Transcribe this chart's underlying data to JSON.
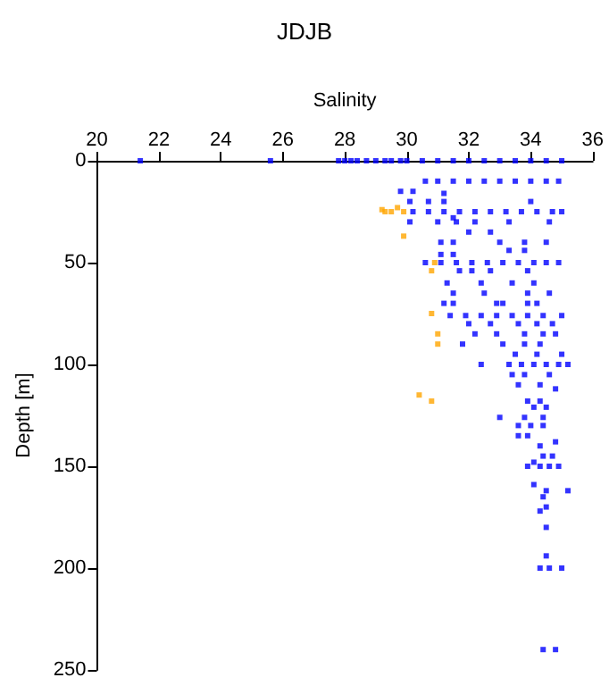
{
  "chart_data": {
    "type": "scatter",
    "title": "JDJB",
    "xlabel": "Salinity",
    "ylabel": "Depth [m]",
    "xlim": [
      20,
      36
    ],
    "xticks": [
      20,
      22,
      24,
      26,
      28,
      30,
      32,
      34,
      36
    ],
    "ylim": [
      250,
      0
    ],
    "yticks": [
      0,
      50,
      100,
      150,
      200,
      250
    ],
    "grid": false,
    "marker": "square",
    "series": [
      {
        "color": "#0000ff",
        "x": [
          21.4,
          25.6,
          27.8,
          28.0,
          28.2,
          28.4,
          28.7,
          29.0,
          29.3,
          29.5,
          29.8,
          30.0,
          30.5,
          31.0,
          31.5,
          32.0,
          32.5,
          33.0,
          33.5,
          34.0,
          34.5,
          35.0,
          30.6,
          31.0,
          31.5,
          32.0,
          32.5,
          33.0,
          33.5,
          34.0,
          34.5,
          34.9,
          29.8,
          30.2,
          31.2,
          30.1,
          30.7,
          31.2,
          34.0,
          30.2,
          30.7,
          31.2,
          31.7,
          32.2,
          32.7,
          33.2,
          33.7,
          34.2,
          34.7,
          35.0,
          31.5,
          30.1,
          31.0,
          31.6,
          32.2,
          33.3,
          34.6,
          32.0,
          32.7,
          31.1,
          31.5,
          33.0,
          33.8,
          34.5,
          33.3,
          33.8,
          31.1,
          31.5,
          30.6,
          31.1,
          31.6,
          32.1,
          32.6,
          33.1,
          33.6,
          34.1,
          34.5,
          34.9,
          31.7,
          32.1,
          32.7,
          33.9,
          31.3,
          32.4,
          33.4,
          34.1,
          31.5,
          32.5,
          33.9,
          34.6,
          31.2,
          31.5,
          32.9,
          33.1,
          33.9,
          34.2,
          31.4,
          31.9,
          32.4,
          32.9,
          33.4,
          33.9,
          34.4,
          35.0,
          32.0,
          32.7,
          33.6,
          34.2,
          34.7,
          32.2,
          32.9,
          33.8,
          34.4,
          34.8,
          31.8,
          33.1,
          33.8,
          34.3,
          33.5,
          34.2,
          35.0,
          32.4,
          33.3,
          33.7,
          34.1,
          34.5,
          34.9,
          35.2,
          33.4,
          33.8,
          34.6,
          33.6,
          34.3,
          34.8,
          33.9,
          34.3,
          34.5,
          34.1,
          33.0,
          33.8,
          34.4,
          33.6,
          34.0,
          34.4,
          33.6,
          33.9,
          34.8,
          34.3,
          34.4,
          34.7,
          34.1,
          33.9,
          34.3,
          34.6,
          34.9,
          34.1,
          34.5,
          35.2,
          34.4,
          34.5,
          34.3,
          34.5,
          34.5,
          34.3,
          34.6,
          35.0,
          34.4,
          34.8
        ],
        "values": [
          0,
          0,
          0,
          0,
          0,
          0,
          0,
          0,
          0,
          0,
          0,
          0,
          0,
          0,
          0,
          0,
          0,
          0,
          0,
          0,
          0,
          0,
          10,
          10,
          10,
          10,
          10,
          10,
          10,
          10,
          10,
          10,
          15,
          15,
          16,
          20,
          20,
          20,
          20,
          25,
          25,
          25,
          25,
          25,
          25,
          25,
          25,
          25,
          25,
          25,
          28,
          30,
          30,
          30,
          30,
          30,
          30,
          35,
          35,
          40,
          40,
          40,
          40,
          40,
          44,
          44,
          46,
          46,
          50,
          50,
          50,
          50,
          50,
          50,
          50,
          50,
          50,
          50,
          54,
          54,
          54,
          54,
          60,
          60,
          60,
          60,
          65,
          65,
          65,
          65,
          70,
          70,
          70,
          70,
          70,
          70,
          76,
          76,
          76,
          76,
          76,
          76,
          76,
          76,
          80,
          80,
          80,
          80,
          80,
          85,
          85,
          85,
          85,
          85,
          90,
          90,
          90,
          90,
          95,
          95,
          95,
          100,
          100,
          100,
          100,
          100,
          100,
          100,
          105,
          105,
          105,
          110,
          110,
          112,
          118,
          118,
          121,
          121,
          126,
          126,
          126,
          130,
          130,
          130,
          135,
          135,
          138,
          140,
          145,
          145,
          148,
          150,
          150,
          150,
          150,
          159,
          162,
          162,
          165,
          170,
          172,
          180,
          194,
          200,
          200,
          200,
          240,
          240
        ]
      },
      {
        "color": "#ffa500",
        "x": [
          29.2,
          29.3,
          29.5,
          29.7,
          29.9,
          29.9,
          30.9,
          30.8,
          30.8,
          31.0,
          31.0,
          30.4,
          30.8
        ],
        "values": [
          24,
          25,
          25,
          23,
          25,
          37,
          50,
          54,
          75,
          85,
          90,
          115,
          118
        ]
      }
    ]
  }
}
